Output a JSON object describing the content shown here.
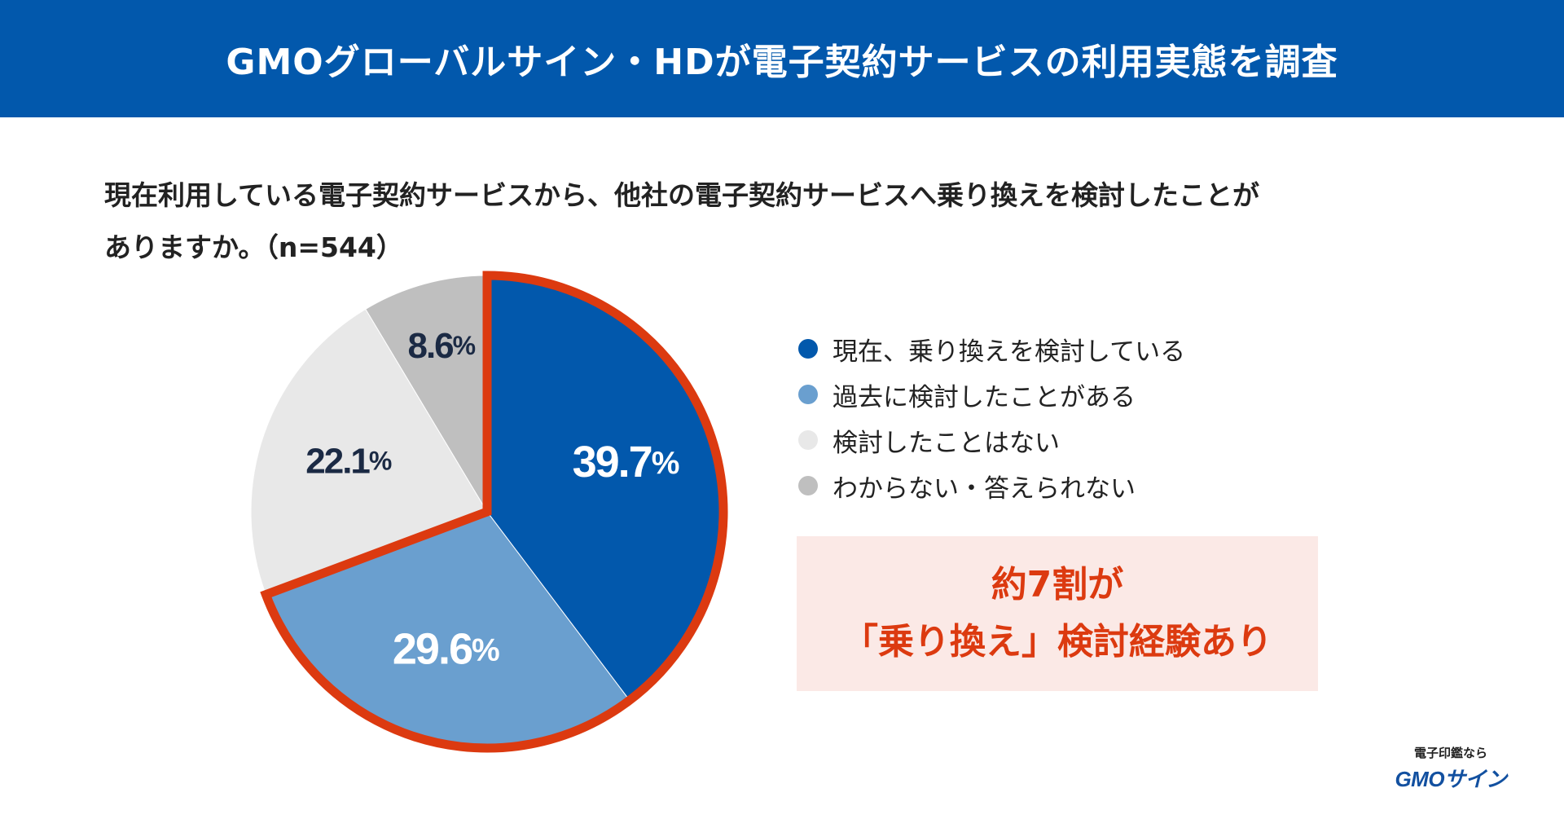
{
  "header": {
    "title": "GMOグローバルサイン・HDが電子契約サービスの利用実態を調査"
  },
  "question": {
    "line1": "現在利用している電子契約サービスから、他社の電子契約サービスへ乗り換えを検討したことが",
    "line2": "ありますか。（n=544）"
  },
  "chart_data": {
    "type": "pie",
    "n": 544,
    "slices": [
      {
        "label": "現在、乗り換えを検討している",
        "value": 39.7,
        "display": "39.7",
        "color": "#0258ac",
        "text_color": "#ffffff",
        "highlighted": true
      },
      {
        "label": "過去に検討したことがある",
        "value": 29.6,
        "display": "29.6",
        "color": "#6a9fcf",
        "text_color": "#ffffff",
        "highlighted": true
      },
      {
        "label": "検討したことはない",
        "value": 22.1,
        "display": "22.1",
        "color": "#e8e8e8",
        "text_color": "#1b2a44",
        "highlighted": false
      },
      {
        "label": "わからない・答えられない",
        "value": 8.6,
        "display": "8.6",
        "color": "#bfbfbf",
        "text_color": "#1b2a44",
        "highlighted": false
      }
    ],
    "unit": "%",
    "highlight_color": "#dc3a10",
    "start_angle_deg": 0,
    "direction": "clockwise"
  },
  "callout": {
    "line1": "約7割が",
    "line2": "「乗り換え」検討経験あり"
  },
  "brand": {
    "tagline": "電子印鑑なら",
    "name": "GMOサイン"
  }
}
